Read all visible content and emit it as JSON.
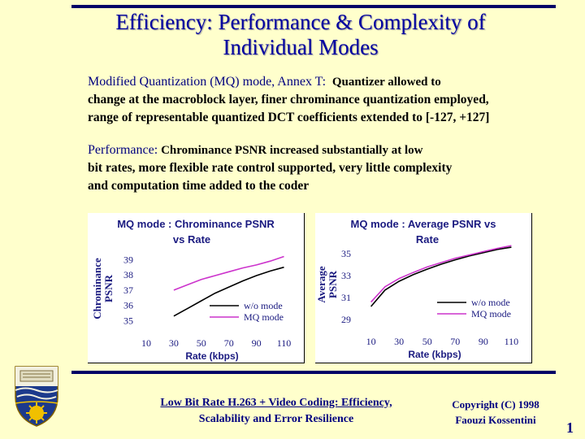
{
  "slide": {
    "title_line1": "Efficiency: Performance & Complexity of",
    "title_line2": "Individual Modes",
    "mq_lead": "Modified Quantization (MQ) mode, Annex T:",
    "mq_text_1": "Quantizer allowed to",
    "mq_text_2": "change at the macroblock layer, finer chrominance quantization employed,",
    "mq_text_3": "range of representable quantized DCT coefficients extended to [-127, +127]",
    "perf_lead": "Performance:",
    "perf_text_1": "Chrominance PSNR increased substantially at low",
    "perf_text_2": "bit rates, more flexible rate control supported, very little complexity",
    "perf_text_3": "and computation time added to the coder"
  },
  "footer": {
    "course_line1": "Low Bit Rate H.263 + Video Coding: Efficiency,",
    "course_line2": "Scalability and Error Resilience",
    "copyright_line1": "Copyright (C) 1998",
    "copyright_line2": "Faouzi Kossentini",
    "page_number": "1"
  },
  "colors": {
    "title": "#0000a0",
    "rule": "#000066",
    "series_wo": "#000000",
    "series_mq": "#cc33cc"
  },
  "chart_data": [
    {
      "type": "line",
      "title_line1": "MQ mode : Chrominance PSNR",
      "title_line2": "vs Rate",
      "xlabel": "Rate (kbps)",
      "ylabel_line1": "Chrominance",
      "ylabel_line2": "PSNR",
      "xlim": [
        10,
        115
      ],
      "ylim": [
        34.6,
        39.6
      ],
      "x_ticks": [
        "10",
        "30",
        "50",
        "70",
        "90",
        "110"
      ],
      "x_tick_values": [
        10,
        30,
        50,
        70,
        90,
        110
      ],
      "y_ticks": [
        "35",
        "36",
        "37",
        "38",
        "39"
      ],
      "y_tick_values": [
        35,
        36,
        37,
        38,
        39
      ],
      "legend_position": "right",
      "series": [
        {
          "name": "w/o mode",
          "x": [
            30,
            40,
            50,
            60,
            70,
            80,
            90,
            100,
            110
          ],
          "y": [
            35.3,
            35.8,
            36.3,
            36.8,
            37.2,
            37.6,
            37.95,
            38.25,
            38.5
          ]
        },
        {
          "name": "MQ mode",
          "x": [
            30,
            40,
            50,
            60,
            70,
            80,
            90,
            100,
            110
          ],
          "y": [
            37.0,
            37.35,
            37.7,
            37.95,
            38.2,
            38.45,
            38.65,
            38.9,
            39.2
          ]
        }
      ]
    },
    {
      "type": "line",
      "title_line1": "MQ mode : Average PSNR vs",
      "title_line2": "Rate",
      "xlabel": "Rate (kbps)",
      "ylabel_line1": "Average",
      "ylabel_line2": "PSNR",
      "xlim": [
        5,
        115
      ],
      "ylim": [
        28.5,
        36.2
      ],
      "x_ticks": [
        "10",
        "30",
        "50",
        "70",
        "90",
        "110"
      ],
      "x_tick_values": [
        10,
        30,
        50,
        70,
        90,
        110
      ],
      "y_ticks": [
        "29",
        "31",
        "33",
        "35"
      ],
      "y_tick_values": [
        29,
        31,
        33,
        35
      ],
      "legend_position": "bottom-right",
      "series": [
        {
          "name": "w/o mode",
          "x": [
            10,
            20,
            30,
            40,
            50,
            60,
            70,
            80,
            90,
            100,
            110
          ],
          "y": [
            30.2,
            31.7,
            32.5,
            33.1,
            33.6,
            34.05,
            34.45,
            34.8,
            35.1,
            35.4,
            35.6
          ]
        },
        {
          "name": "MQ mode",
          "x": [
            10,
            20,
            30,
            40,
            50,
            60,
            70,
            80,
            90,
            100,
            110
          ],
          "y": [
            30.6,
            32.0,
            32.75,
            33.3,
            33.8,
            34.2,
            34.6,
            34.9,
            35.2,
            35.5,
            35.75
          ]
        }
      ]
    }
  ]
}
